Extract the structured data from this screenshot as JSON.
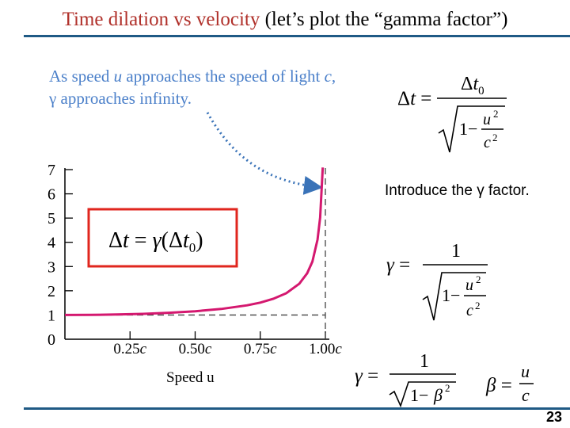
{
  "slide": {
    "title_accent": "Time dilation vs velocity",
    "title_rest": " (let’s plot the “gamma factor”)",
    "intro_text": "Introduce the γ factor.",
    "page_number": "23",
    "callout_line1_a": "As speed ",
    "callout_line1_var": "u",
    "callout_line1_b": " approaches the speed of light ",
    "callout_line1_var2": "c",
    "callout_line1_c": ",",
    "callout_line2_sym": "γ",
    "callout_line2_rest": " approaches infinity."
  },
  "colors": {
    "title_accent": "#b0302a",
    "rule": "#1f5a85",
    "curve": "#d4186f",
    "callout_text": "#4a7fc9",
    "arrow": "#3a73b8",
    "box_border": "#e0261e"
  },
  "chart_data": {
    "type": "line",
    "function": "gamma = 1/sqrt(1 - (u/c)^2)",
    "xlabel": "Speed u",
    "x_ticks": [
      "0.25c",
      "0.50c",
      "0.75c",
      "1.00c"
    ],
    "x_tick_values": [
      0.25,
      0.5,
      0.75,
      1.0
    ],
    "y_ticks": [
      "0",
      "1",
      "2",
      "3",
      "4",
      "5",
      "6",
      "7"
    ],
    "y_tick_values": [
      0,
      1,
      2,
      3,
      4,
      5,
      6,
      7
    ],
    "xlim": [
      0,
      1.0
    ],
    "ylim": [
      0,
      7
    ],
    "asymptote_x": 1.0,
    "reference_line_y": 1,
    "grid": false,
    "series": [
      {
        "x": [
          0,
          0.1,
          0.2,
          0.3,
          0.4,
          0.5,
          0.6,
          0.7,
          0.75,
          0.8,
          0.85,
          0.9,
          0.93,
          0.95,
          0.97,
          0.98,
          0.99
        ],
        "y": [
          1.0,
          1.005,
          1.021,
          1.048,
          1.091,
          1.155,
          1.25,
          1.4,
          1.512,
          1.667,
          1.898,
          2.294,
          2.72,
          3.203,
          4.113,
          5.025,
          7.089
        ]
      }
    ]
  },
  "equations": {
    "dilation": "Δt = Δt0 / √(1 − u²/c²)",
    "boxed": "Δt = γ(Δt0)",
    "gamma_def": "γ = 1 / √(1 − u²/c²)",
    "gamma_beta": "γ = 1 / √(1 − β²)",
    "beta_def": "β = u/c"
  }
}
